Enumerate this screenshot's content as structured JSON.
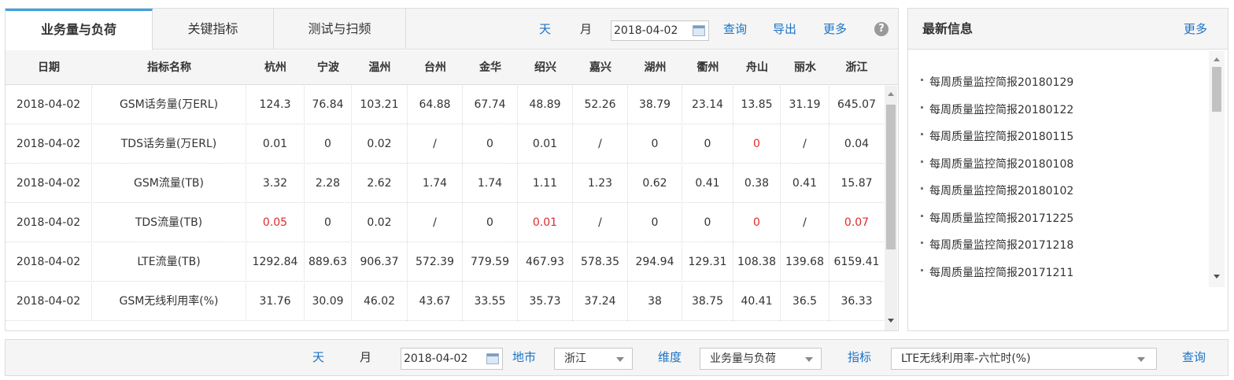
{
  "tabs": [
    {
      "label": "业务量与负荷",
      "active": true
    },
    {
      "label": "关键指标",
      "active": false
    },
    {
      "label": "测试与扫频",
      "active": false
    }
  ],
  "toolbar": {
    "day": "天",
    "month": "月",
    "date": "2018-04-02",
    "query": "查询",
    "export": "导出",
    "more": "更多",
    "help": "?"
  },
  "table": {
    "headers": [
      "日期",
      "指标名称",
      "杭州",
      "宁波",
      "温州",
      "台州",
      "金华",
      "绍兴",
      "嘉兴",
      "湖州",
      "衢州",
      "舟山",
      "丽水",
      "浙江"
    ],
    "rows": [
      [
        "2018-04-02",
        "GSM话务量(万ERL)",
        "124.3",
        "76.84",
        "103.21",
        "64.88",
        "67.74",
        "48.89",
        "52.26",
        "38.79",
        "23.14",
        "13.85",
        "31.19",
        "645.07"
      ],
      [
        "2018-04-02",
        "TDS话务量(万ERL)",
        "0.01",
        "0",
        "0.02",
        "/",
        "0",
        "0.01",
        "/",
        "0",
        "0",
        "0",
        "/",
        "0.04"
      ],
      [
        "2018-04-02",
        "GSM流量(TB)",
        "3.32",
        "2.28",
        "2.62",
        "1.74",
        "1.74",
        "1.11",
        "1.23",
        "0.62",
        "0.41",
        "0.38",
        "0.41",
        "15.87"
      ],
      [
        "2018-04-02",
        "TDS流量(TB)",
        "0.05",
        "0",
        "0.02",
        "/",
        "0",
        "0.01",
        "/",
        "0",
        "0",
        "0",
        "/",
        "0.07"
      ],
      [
        "2018-04-02",
        "LTE流量(TB)",
        "1292.84",
        "889.63",
        "906.37",
        "572.39",
        "779.59",
        "467.93",
        "578.35",
        "294.94",
        "129.31",
        "108.38",
        "139.68",
        "6159.41"
      ],
      [
        "2018-04-02",
        "GSM无线利用率(%)",
        "31.76",
        "30.09",
        "46.02",
        "43.67",
        "33.55",
        "35.73",
        "37.24",
        "38",
        "38.75",
        "40.41",
        "36.5",
        "36.33"
      ]
    ],
    "red_cells": [
      [
        1,
        11
      ],
      [
        3,
        2
      ],
      [
        3,
        7
      ],
      [
        3,
        11
      ],
      [
        3,
        13
      ]
    ],
    "highlight_color": "#e02b2b"
  },
  "info": {
    "title": "最新信息",
    "more": "更多",
    "items": [
      "每周质量监控简报20180129",
      "每周质量监控简报20180122",
      "每周质量监控简报20180115",
      "每周质量监控简报20180108",
      "每周质量监控简报20180102",
      "每周质量监控简报20171225",
      "每周质量监控简报20171218",
      "每周质量监控简报20171211"
    ]
  },
  "filter": {
    "day": "天",
    "month": "月",
    "date": "2018-04-02",
    "city_label": "地市",
    "city_value": "浙江",
    "dimension_label": "维度",
    "dimension_value": "业务量与负荷",
    "metric_label": "指标",
    "metric_value": "LTE无线利用率-六忙时(%)",
    "query": "查询"
  },
  "colors": {
    "accent": "#1a73c7",
    "tab_indicator": "#3aa3e3"
  }
}
